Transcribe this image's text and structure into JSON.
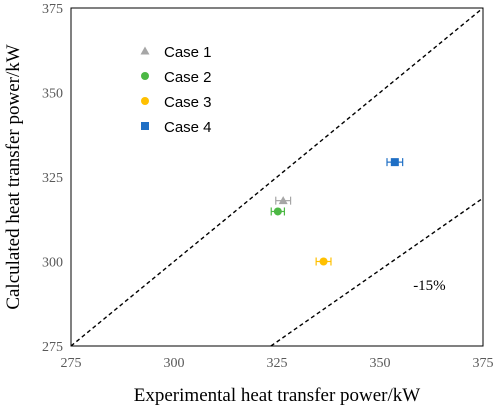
{
  "chart_data": {
    "type": "scatter",
    "xlabel": "Experimental heat transfer power/kW",
    "ylabel": "Calculated heat transfer power/kW",
    "xlim": [
      275,
      375
    ],
    "ylim": [
      275,
      375
    ],
    "x_ticks": [
      "275",
      "300",
      "325",
      "350",
      "375"
    ],
    "y_ticks": [
      "275",
      "300",
      "325",
      "350",
      "375"
    ],
    "grid": false,
    "legend_position": "top-left",
    "series": [
      {
        "name": "Case 1",
        "marker": "triangle",
        "color": "#a6a6a6",
        "points": [
          {
            "x": 326.5,
            "y": 318,
            "xerr": 1.8
          }
        ]
      },
      {
        "name": "Case 2",
        "marker": "circle",
        "color": "#4cb844",
        "points": [
          {
            "x": 325.2,
            "y": 314.8,
            "xerr": 1.6
          }
        ]
      },
      {
        "name": "Case 3",
        "marker": "circle",
        "color": "#ffc000",
        "points": [
          {
            "x": 336.3,
            "y": 300,
            "xerr": 1.8
          }
        ]
      },
      {
        "name": "Case 4",
        "marker": "square",
        "color": "#1f6fc5",
        "points": [
          {
            "x": 353.6,
            "y": 329.4,
            "xerr": 1.9
          }
        ]
      }
    ],
    "reference_lines": [
      {
        "style": "dashed",
        "color": "#000000",
        "x": [
          275,
          375
        ],
        "y": [
          275,
          375
        ]
      },
      {
        "style": "dashed",
        "color": "#000000",
        "x": [
          323.53,
          375
        ],
        "y": [
          275,
          318.75
        ]
      }
    ],
    "annotations": [
      {
        "text": "-15%",
        "x": 362,
        "y": 291.5
      }
    ]
  }
}
